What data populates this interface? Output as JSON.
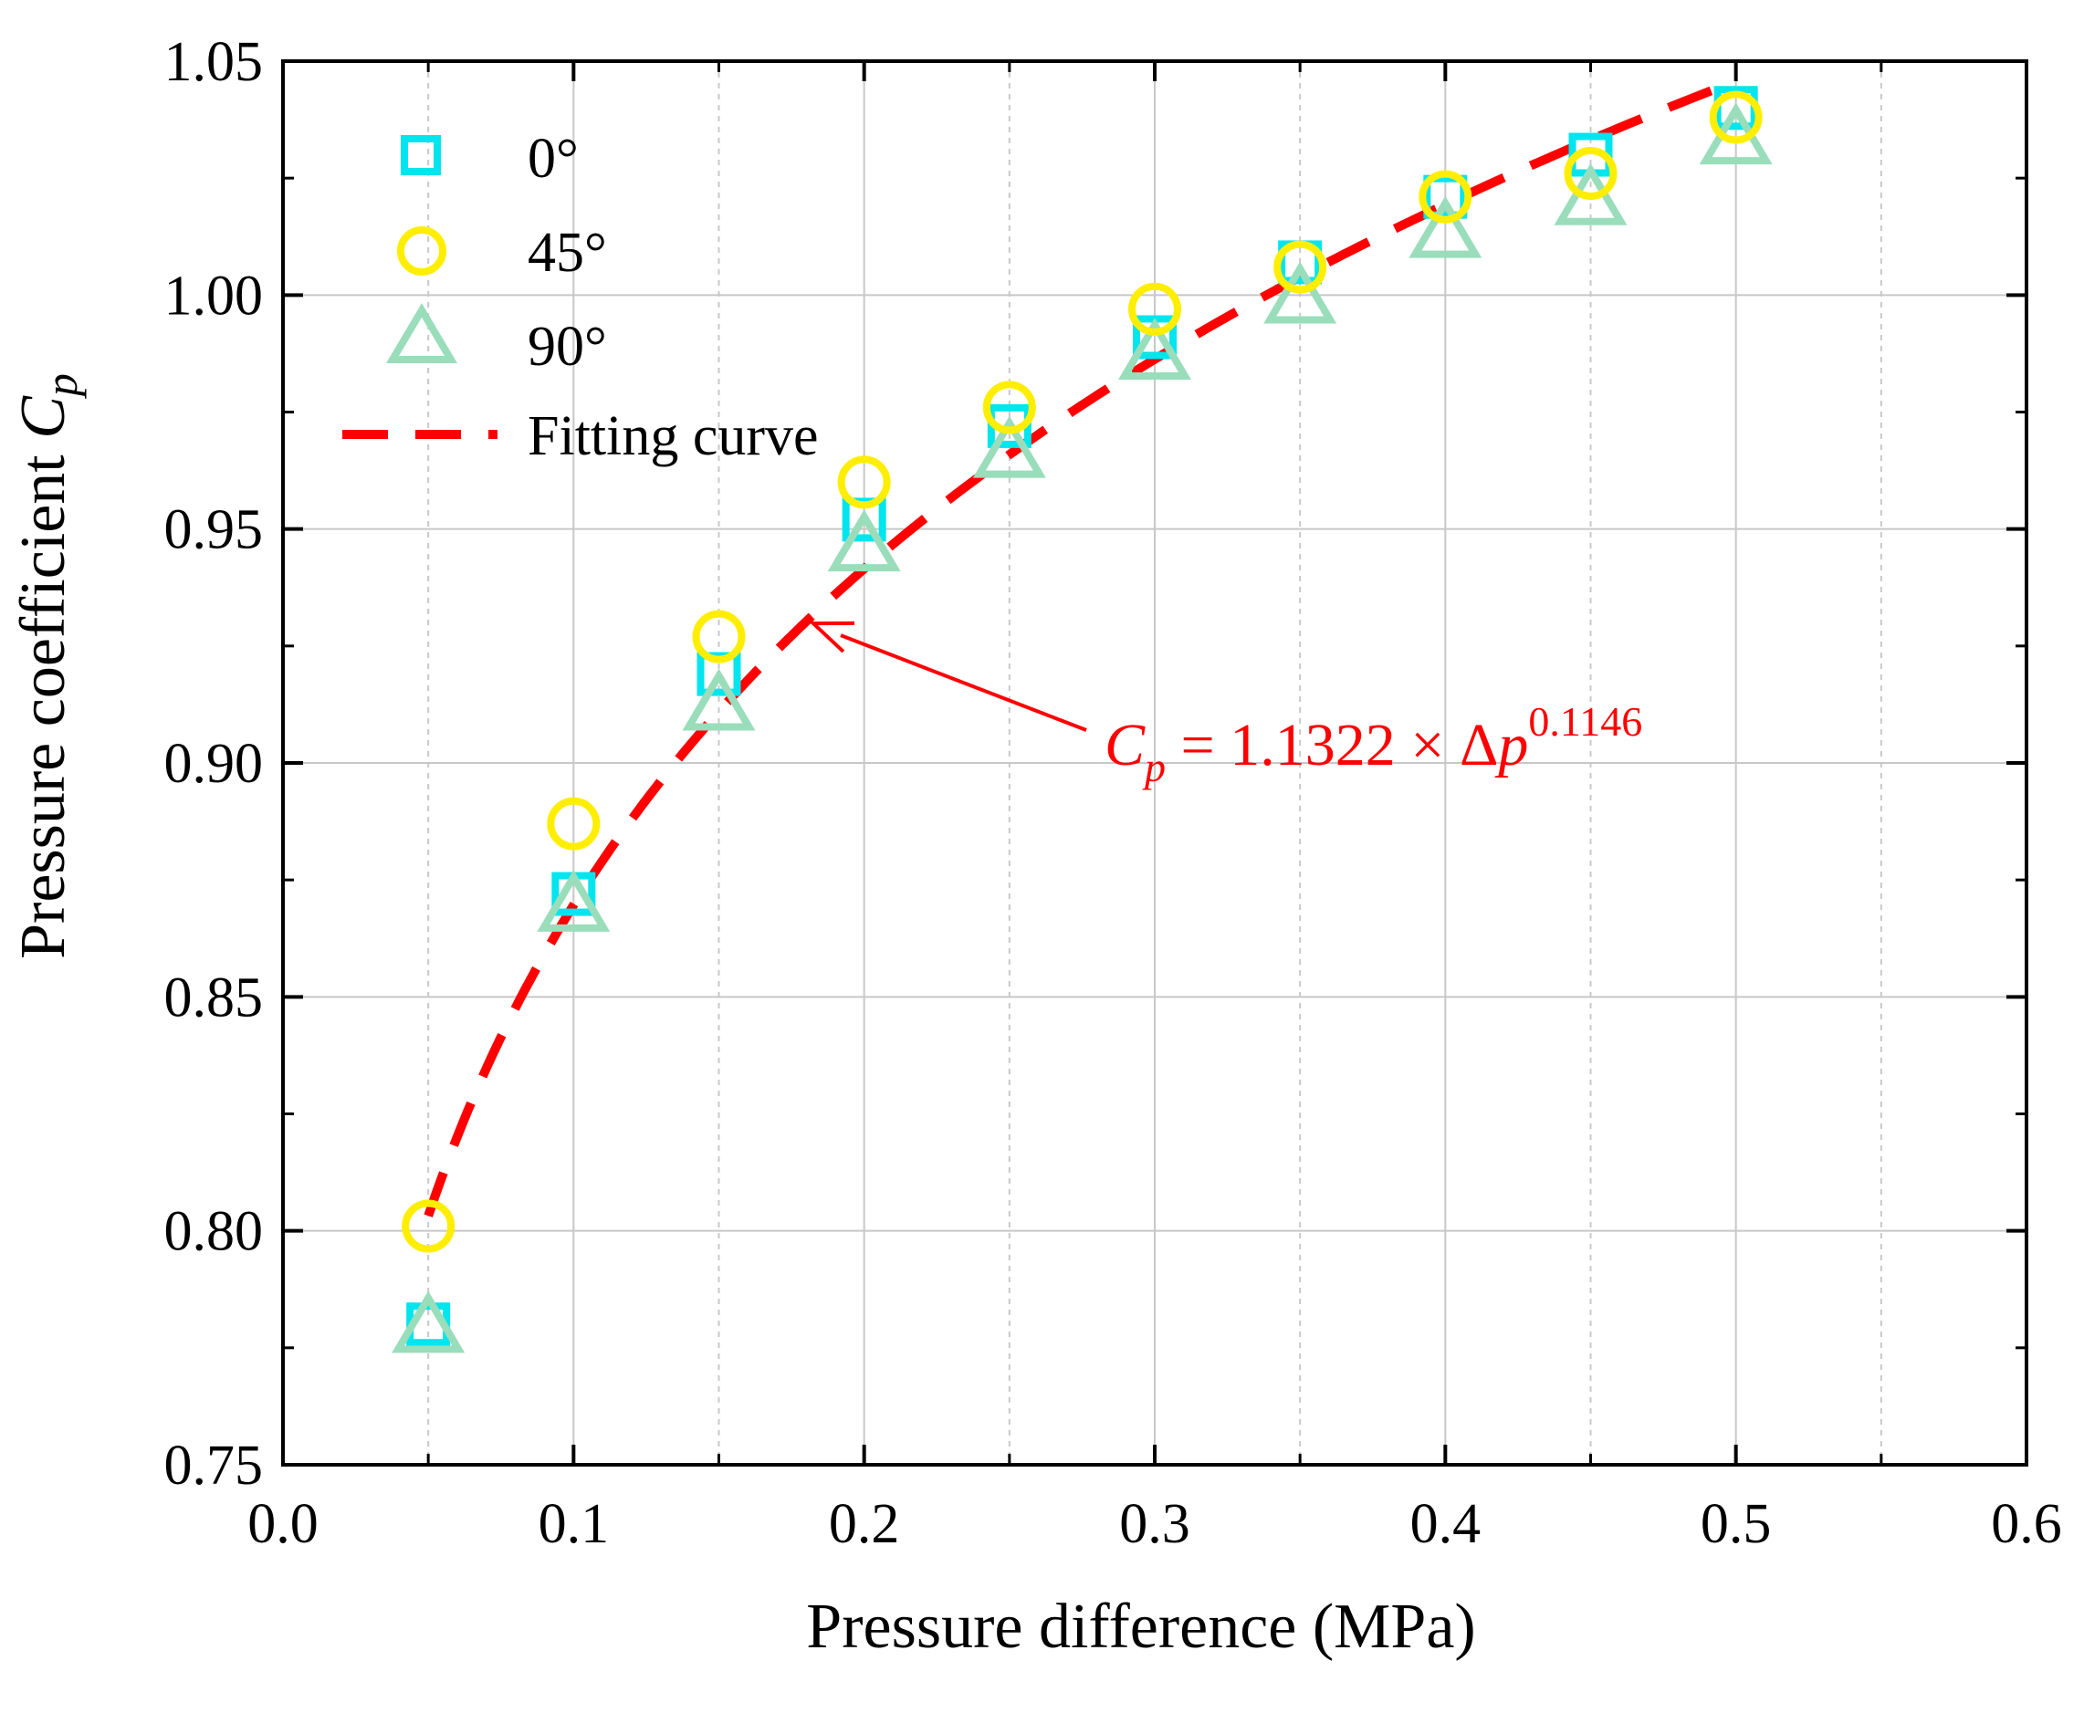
{
  "chart_data": {
    "type": "scatter",
    "xlabel": "Pressure difference (MPa)",
    "ylabel": {
      "main": "Pressure coefficient ",
      "symbol": "C",
      "sub": "p"
    },
    "xlim": [
      0.0,
      0.6
    ],
    "ylim": [
      0.75,
      1.05
    ],
    "x_ticks": [
      0.0,
      0.1,
      0.2,
      0.3,
      0.4,
      0.5,
      0.6
    ],
    "x_tick_labels": [
      "0.0",
      "0.1",
      "0.2",
      "0.3",
      "0.4",
      "0.5",
      "0.6"
    ],
    "y_ticks": [
      0.75,
      0.8,
      0.85,
      0.9,
      0.95,
      1.0,
      1.05
    ],
    "y_tick_labels": [
      "0.75",
      "0.80",
      "0.85",
      "0.90",
      "0.95",
      "1.00",
      "1.05"
    ],
    "grid": true,
    "legend_position": "top-left",
    "series": [
      {
        "name": "0°",
        "marker": "square",
        "color": "#00e5ee",
        "x": [
          0.05,
          0.1,
          0.15,
          0.2,
          0.25,
          0.3,
          0.35,
          0.4,
          0.45,
          0.5
        ],
        "y": [
          0.78,
          0.872,
          0.919,
          0.952,
          0.972,
          0.991,
          1.007,
          1.021,
          1.03,
          1.04
        ]
      },
      {
        "name": "45°",
        "marker": "circle",
        "color": "#ffee00",
        "x": [
          0.05,
          0.1,
          0.15,
          0.2,
          0.25,
          0.3,
          0.35,
          0.4,
          0.45,
          0.5
        ],
        "y": [
          0.801,
          0.887,
          0.927,
          0.96,
          0.976,
          0.997,
          1.006,
          1.021,
          1.026,
          1.038
        ]
      },
      {
        "name": "90°",
        "marker": "triangle",
        "color": "#99ddbb",
        "x": [
          0.05,
          0.1,
          0.15,
          0.2,
          0.25,
          0.3,
          0.35,
          0.4,
          0.45,
          0.5
        ],
        "y": [
          0.779,
          0.869,
          0.912,
          0.946,
          0.966,
          0.987,
          0.999,
          1.013,
          1.02,
          1.033
        ]
      }
    ],
    "fit": {
      "name": "Fitting curve",
      "color": "#ff0000",
      "coefficient": 1.1322,
      "exponent": 0.1146,
      "x_range": [
        0.05,
        0.5
      ]
    },
    "annotation": {
      "symbol": "C",
      "sub": "p",
      "text": " = 1.1322 × Δ",
      "var": "p",
      "sup": "0.1146",
      "color": "#ff0000",
      "arrow_target_x": 0.18
    }
  }
}
